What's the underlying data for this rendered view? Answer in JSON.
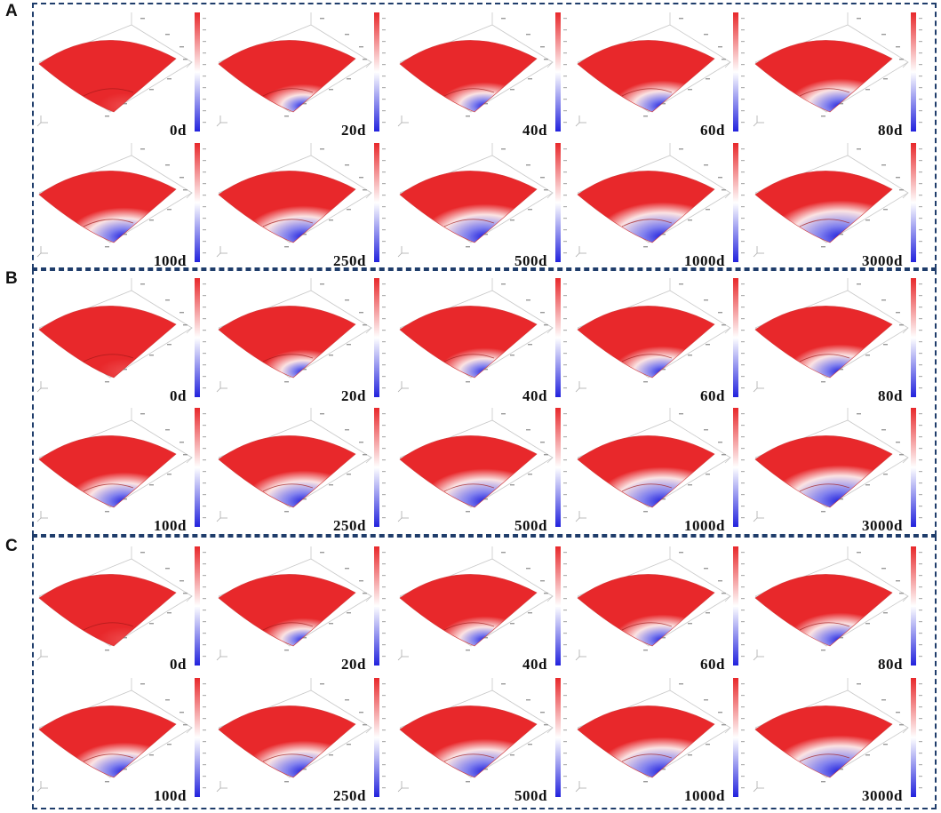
{
  "figure": {
    "panels": [
      {
        "label": "A",
        "times": [
          "0d",
          "20d",
          "40d",
          "60d",
          "80d",
          "100d",
          "250d",
          "500d",
          "1000d",
          "3000d"
        ]
      },
      {
        "label": "B",
        "times": [
          "0d",
          "20d",
          "40d",
          "60d",
          "80d",
          "100d",
          "250d",
          "500d",
          "1000d",
          "3000d"
        ]
      },
      {
        "label": "C",
        "times": [
          "0d",
          "20d",
          "40d",
          "60d",
          "80d",
          "100d",
          "250d",
          "500d",
          "1000d",
          "3000d"
        ]
      }
    ],
    "colors": {
      "high": "#e8282b",
      "mid": "#ffffff",
      "low": "#2222dd",
      "frame": "#1f3d6b"
    }
  }
}
